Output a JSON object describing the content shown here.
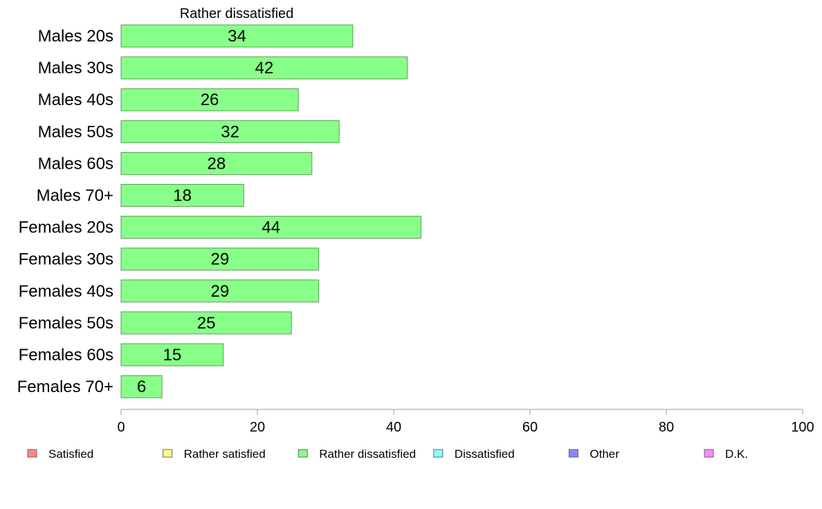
{
  "chart_data": {
    "type": "bar",
    "orientation": "horizontal",
    "title": "Rather dissatisfied",
    "categories": [
      "Males 20s",
      "Males 30s",
      "Males 40s",
      "Males 50s",
      "Males 60s",
      "Males 70+",
      "Females 20s",
      "Females 30s",
      "Females 40s",
      "Females 50s",
      "Females 60s",
      "Females 70+"
    ],
    "values": [
      34,
      42,
      26,
      32,
      28,
      18,
      44,
      29,
      29,
      25,
      15,
      6
    ],
    "series_color": "#88ff88",
    "bar_stroke": "#5a9a5a",
    "xlim": [
      0,
      100
    ],
    "xticks": [
      0,
      20,
      40,
      60,
      80,
      100
    ],
    "grid": false,
    "legend": {
      "placement": "bottom",
      "items": [
        {
          "label": "Satisfied",
          "color": "#ff8888"
        },
        {
          "label": "Rather satisfied",
          "color": "#ffff88"
        },
        {
          "label": "Rather dissatisfied",
          "color": "#88ff88"
        },
        {
          "label": "Dissatisfied",
          "color": "#88ffff"
        },
        {
          "label": "Other",
          "color": "#8888ee"
        },
        {
          "label": "D.K.",
          "color": "#ff88ff"
        }
      ]
    }
  }
}
